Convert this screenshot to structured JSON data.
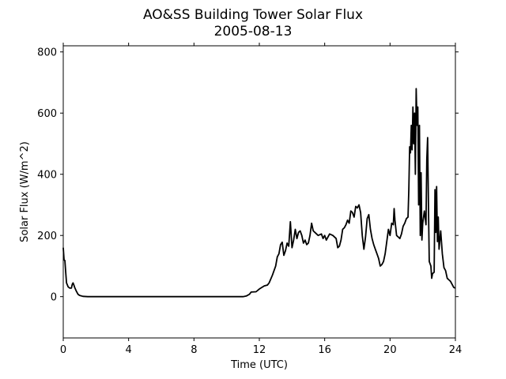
{
  "chart_data": {
    "type": "line",
    "title": "AO&SS Building Tower Solar Flux",
    "subtitle": "2005-08-13",
    "xlabel": "Time (UTC)",
    "ylabel": "Solar Flux (W/m^2)",
    "xlim": [
      0,
      24
    ],
    "ylim": [
      -135,
      820
    ],
    "xticks": [
      0,
      4,
      8,
      12,
      16,
      20,
      24
    ],
    "yticks": [
      0,
      200,
      400,
      600,
      800
    ],
    "grid": false,
    "line_color": "#000000",
    "series": [
      {
        "points": [
          [
            0.0,
            160
          ],
          [
            0.05,
            120
          ],
          [
            0.1,
            118
          ],
          [
            0.15,
            80
          ],
          [
            0.2,
            45
          ],
          [
            0.3,
            32
          ],
          [
            0.4,
            28
          ],
          [
            0.5,
            28
          ],
          [
            0.55,
            40
          ],
          [
            0.6,
            45
          ],
          [
            0.65,
            38
          ],
          [
            0.7,
            30
          ],
          [
            0.8,
            18
          ],
          [
            0.9,
            8
          ],
          [
            1.0,
            4
          ],
          [
            1.2,
            1
          ],
          [
            1.5,
            0
          ],
          [
            11.0,
            0
          ],
          [
            11.2,
            2
          ],
          [
            11.4,
            8
          ],
          [
            11.5,
            15
          ],
          [
            11.8,
            16
          ],
          [
            12.0,
            25
          ],
          [
            12.3,
            35
          ],
          [
            12.5,
            38
          ],
          [
            12.6,
            45
          ],
          [
            12.8,
            70
          ],
          [
            13.0,
            100
          ],
          [
            13.1,
            130
          ],
          [
            13.2,
            140
          ],
          [
            13.3,
            170
          ],
          [
            13.4,
            178
          ],
          [
            13.5,
            135
          ],
          [
            13.6,
            150
          ],
          [
            13.7,
            175
          ],
          [
            13.8,
            165
          ],
          [
            13.9,
            245
          ],
          [
            14.0,
            160
          ],
          [
            14.1,
            185
          ],
          [
            14.2,
            220
          ],
          [
            14.3,
            190
          ],
          [
            14.4,
            210
          ],
          [
            14.5,
            215
          ],
          [
            14.6,
            200
          ],
          [
            14.7,
            175
          ],
          [
            14.8,
            185
          ],
          [
            14.9,
            170
          ],
          [
            15.0,
            175
          ],
          [
            15.1,
            200
          ],
          [
            15.2,
            240
          ],
          [
            15.3,
            215
          ],
          [
            15.4,
            210
          ],
          [
            15.6,
            200
          ],
          [
            15.8,
            205
          ],
          [
            15.9,
            190
          ],
          [
            16.0,
            200
          ],
          [
            16.1,
            185
          ],
          [
            16.3,
            205
          ],
          [
            16.5,
            200
          ],
          [
            16.7,
            190
          ],
          [
            16.8,
            160
          ],
          [
            16.9,
            165
          ],
          [
            17.0,
            185
          ],
          [
            17.1,
            220
          ],
          [
            17.2,
            225
          ],
          [
            17.3,
            235
          ],
          [
            17.4,
            250
          ],
          [
            17.5,
            240
          ],
          [
            17.6,
            280
          ],
          [
            17.7,
            275
          ],
          [
            17.8,
            260
          ],
          [
            17.9,
            295
          ],
          [
            18.0,
            290
          ],
          [
            18.1,
            300
          ],
          [
            18.2,
            275
          ],
          [
            18.3,
            200
          ],
          [
            18.4,
            155
          ],
          [
            18.5,
            195
          ],
          [
            18.6,
            255
          ],
          [
            18.7,
            268
          ],
          [
            18.8,
            220
          ],
          [
            18.9,
            190
          ],
          [
            19.0,
            170
          ],
          [
            19.1,
            155
          ],
          [
            19.2,
            140
          ],
          [
            19.3,
            125
          ],
          [
            19.4,
            100
          ],
          [
            19.5,
            105
          ],
          [
            19.6,
            115
          ],
          [
            19.7,
            140
          ],
          [
            19.8,
            180
          ],
          [
            19.9,
            220
          ],
          [
            20.0,
            200
          ],
          [
            20.1,
            240
          ],
          [
            20.2,
            235
          ],
          [
            20.25,
            288
          ],
          [
            20.3,
            250
          ],
          [
            20.4,
            200
          ],
          [
            20.5,
            195
          ],
          [
            20.6,
            190
          ],
          [
            20.7,
            205
          ],
          [
            20.8,
            230
          ],
          [
            20.9,
            240
          ],
          [
            21.0,
            255
          ],
          [
            21.1,
            260
          ],
          [
            21.15,
            350
          ],
          [
            21.2,
            490
          ],
          [
            21.25,
            470
          ],
          [
            21.3,
            560
          ],
          [
            21.35,
            480
          ],
          [
            21.4,
            620
          ],
          [
            21.45,
            500
          ],
          [
            21.5,
            600
          ],
          [
            21.55,
            400
          ],
          [
            21.6,
            680
          ],
          [
            21.65,
            560
          ],
          [
            21.7,
            620
          ],
          [
            21.75,
            300
          ],
          [
            21.8,
            560
          ],
          [
            21.85,
            200
          ],
          [
            21.9,
            405
          ],
          [
            21.95,
            185
          ],
          [
            22.0,
            240
          ],
          [
            22.1,
            280
          ],
          [
            22.2,
            235
          ],
          [
            22.25,
            450
          ],
          [
            22.3,
            520
          ],
          [
            22.35,
            300
          ],
          [
            22.4,
            115
          ],
          [
            22.5,
            100
          ],
          [
            22.55,
            60
          ],
          [
            22.6,
            75
          ],
          [
            22.7,
            80
          ],
          [
            22.75,
            350
          ],
          [
            22.8,
            210
          ],
          [
            22.85,
            360
          ],
          [
            22.9,
            180
          ],
          [
            22.95,
            260
          ],
          [
            23.0,
            155
          ],
          [
            23.1,
            215
          ],
          [
            23.2,
            140
          ],
          [
            23.3,
            95
          ],
          [
            23.4,
            85
          ],
          [
            23.5,
            60
          ],
          [
            23.6,
            55
          ],
          [
            23.7,
            50
          ],
          [
            23.8,
            40
          ],
          [
            23.9,
            30
          ],
          [
            24.0,
            28
          ]
        ]
      }
    ]
  }
}
